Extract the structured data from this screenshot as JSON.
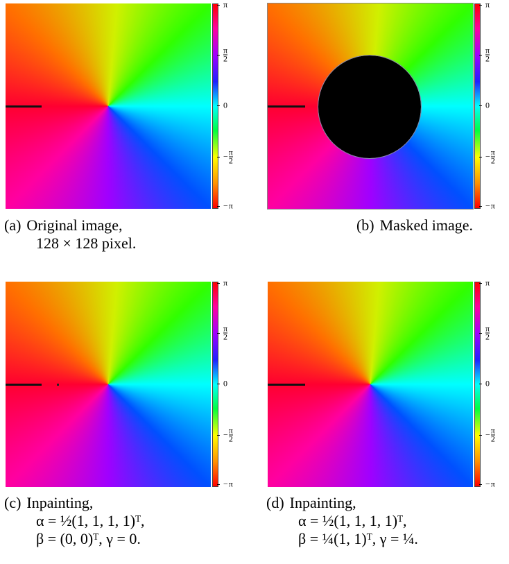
{
  "colorbar_ticks": [
    {
      "sign": "",
      "num": "π",
      "den": ""
    },
    {
      "sign": "",
      "num": "π",
      "den": "2"
    },
    {
      "sign": "",
      "num": "0",
      "den": ""
    },
    {
      "sign": "−",
      "num": "π",
      "den": "2"
    },
    {
      "sign": "−",
      "num": "π",
      "den": ""
    }
  ],
  "panels": [
    {
      "label": "(a)",
      "caption": [
        "Original image,",
        "128 × 128 pixel."
      ]
    },
    {
      "label": "(b)",
      "caption": [
        "Masked image."
      ]
    },
    {
      "label": "(c)",
      "caption": [
        "Inpainting,",
        "α = ½(1, 1, 1, 1)ᵀ,",
        "β = (0, 0)ᵀ, γ = 0."
      ]
    },
    {
      "label": "(d)",
      "caption": [
        "Inpainting,",
        "α = ½(1, 1, 1, 1)ᵀ,",
        "β = ¼(1, 1)ᵀ, γ = ¼."
      ]
    }
  ]
}
